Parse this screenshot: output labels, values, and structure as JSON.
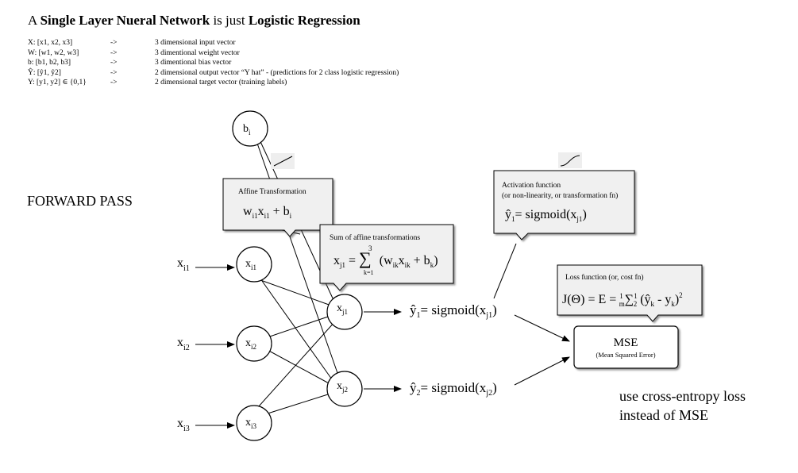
{
  "title": {
    "prefix": "A ",
    "bold1": "Single Layer Nueral Network",
    "middle": " is just ",
    "bold2": "Logistic Regression"
  },
  "definitions": [
    {
      "symbol": "X:  [x1, x2, x3]",
      "arrow": "->",
      "desc": "3 dimensional input vector"
    },
    {
      "symbol": "W:  [w1, w2, w3]",
      "arrow": "->",
      "desc": "3 dimentional weight vector"
    },
    {
      "symbol": "b:  [b1, b2, b3]",
      "arrow": "->",
      "desc": "3 dimentional bias vector"
    },
    {
      "symbol": "Ŷ:  [ŷ1, ŷ2]",
      "arrow": "->",
      "desc": "2 dimensional output vector “Y hat” - (predictions for 2 class logistic regression)"
    },
    {
      "symbol": "Y:  [y1, y2] ∈ {0,1}",
      "arrow": "->",
      "desc": "2 dimensional target vector (training labels)"
    }
  ],
  "forward_pass_label": "FORWARD PASS",
  "nodes": {
    "bias": {
      "main": "b",
      "sub": "i"
    },
    "inputs": [
      {
        "main": "x",
        "sub": "i1"
      },
      {
        "main": "x",
        "sub": "i2"
      },
      {
        "main": "x",
        "sub": "i3"
      }
    ],
    "hidden": [
      {
        "main": "x",
        "sub": "j1"
      },
      {
        "main": "x",
        "sub": "j2"
      }
    ]
  },
  "input_labels": [
    {
      "main": "x",
      "sub": "i1"
    },
    {
      "main": "x",
      "sub": "i2"
    },
    {
      "main": "x",
      "sub": "i3"
    }
  ],
  "outputs": [
    {
      "yhat": "ŷ",
      "yhat_sub": "1",
      "eq": "= sigmoid(x",
      "eq_sub": "j1",
      "close": ")"
    },
    {
      "yhat": "ŷ",
      "yhat_sub": "2",
      "eq": "= sigmoid(x",
      "eq_sub": "j2",
      "close": ")"
    }
  ],
  "callouts": {
    "affine": {
      "title": "Affine Transformation",
      "eq": "w  x  + b",
      "w_sub": "i1",
      "x_sub": "i1",
      "b_sub": "i"
    },
    "sum": {
      "title": "Sum of affine transformations",
      "lhs": "x",
      "lhs_sub": "j1",
      "sigma_top": "3",
      "sigma_bottom": "k=1",
      "rhs": "(w  x  + b )",
      "w_sub": "ik",
      "x_sub": "ik",
      "b_sub": "k"
    },
    "activation": {
      "title": "Activation function",
      "subtitle": "(or non-linearity, or transformation fn)",
      "yhat": "ŷ",
      "yhat_sub": "1",
      "eq": "= sigmoid(x",
      "eq_sub": "j1",
      "close": ")"
    },
    "loss": {
      "title": "Loss function (or, cost fn)",
      "eq": "J(Θ) = E = ",
      "frac1_num": "1",
      "frac1_den": "m",
      "sum": "∑",
      "frac2_num": "1",
      "frac2_den": "2",
      "tail": "(ŷ  - y )",
      "yhat_sub": "k",
      "y_sub": "k",
      "sup": "2"
    }
  },
  "mse": {
    "title": "MSE",
    "subtitle": "(Mean Squared Error)"
  },
  "note": "use cross-entropy loss instead of MSE"
}
